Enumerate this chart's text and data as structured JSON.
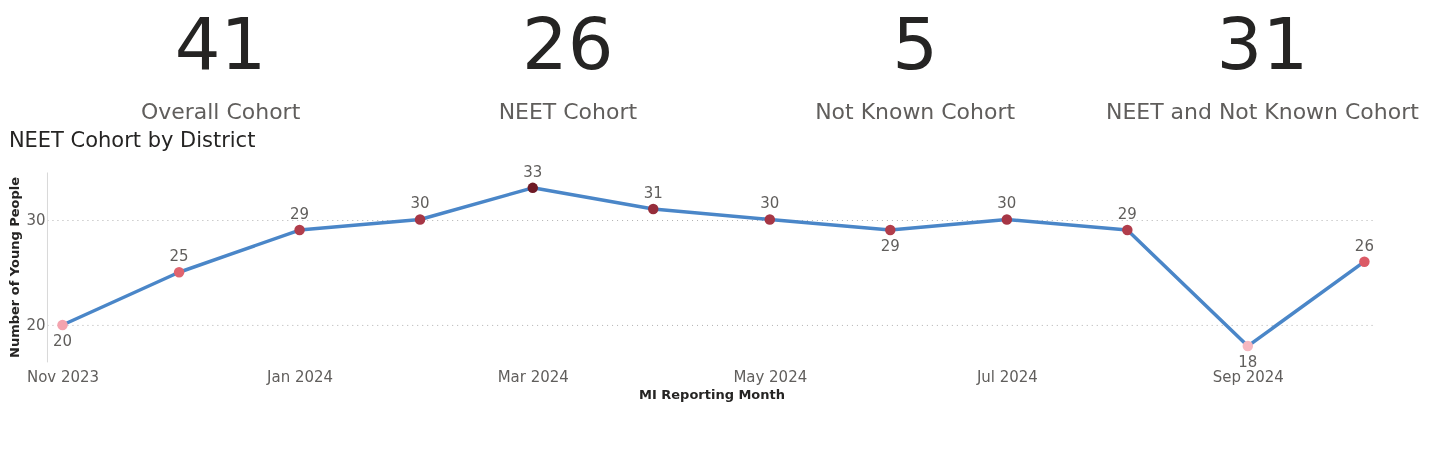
{
  "chart_data": [
    {
      "type": "other",
      "categories": [
        "Overall Cohort",
        "NEET Cohort",
        "Not Known Cohort",
        "NEET and Not Known Cohort"
      ],
      "values": [
        41,
        26,
        5,
        31
      ],
      "data_labels": true
    },
    {
      "type": "line",
      "title": "NEET Cohort by District",
      "xlabel": "MI Reporting Month",
      "ylabel": "Number of Young People",
      "x": [
        "2023-11-01",
        "2023-12-01",
        "2024-01-01",
        "2024-02-01",
        "2024-03-01",
        "2024-04-01",
        "2024-05-01",
        "2024-06-01",
        "2024-07-01",
        "2024-08-01",
        "2024-09-01",
        "2024-10-01"
      ],
      "series": [
        {
          "color": "#4a86c8",
          "values": [
            20,
            25,
            29,
            30,
            33,
            31,
            30,
            29,
            30,
            29,
            18,
            26
          ],
          "colors": [
            "#f4a3ae",
            "#e0646f",
            "#b13d4b",
            "#a63645",
            "#6e1a26",
            "#952d3b",
            "#a63645",
            "#b13d4b",
            "#a63645",
            "#b13d4b",
            "#f6b8c0",
            "#db5a66"
          ]
        }
      ],
      "xlim": [
        "2023-10-28",
        "2024-10-04"
      ],
      "xticks": [
        {
          "value": "2023-11-01",
          "label": "Nov 2023"
        },
        {
          "value": "2024-01-01",
          "label": "Jan 2024"
        },
        {
          "value": "2024-03-01",
          "label": "Mar 2024"
        },
        {
          "value": "2024-05-01",
          "label": "May 2024"
        },
        {
          "value": "2024-07-01",
          "label": "Jul 2024"
        },
        {
          "value": "2024-09-01",
          "label": "Sep 2024"
        }
      ],
      "ylim": [
        16.5,
        34.5
      ],
      "yticks": [
        20,
        30
      ],
      "grid": "y",
      "marker": "circle",
      "line_style": "solid",
      "data_labels": true
    }
  ]
}
